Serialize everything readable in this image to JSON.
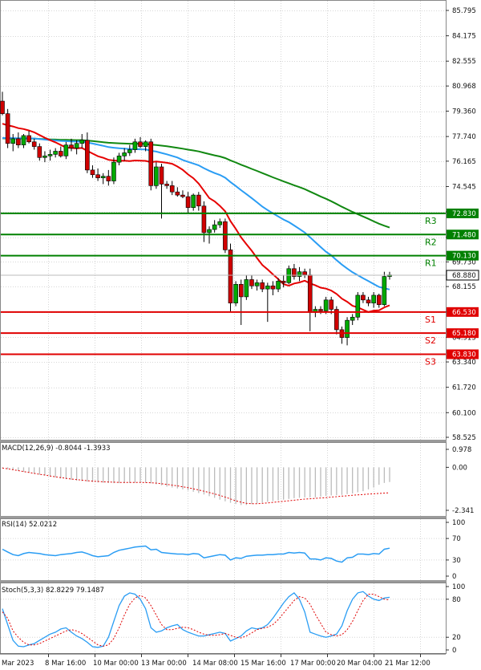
{
  "chart_data": [
    {
      "type": "candlestick",
      "price_labels": [
        "85.795",
        "84.175",
        "82.555",
        "80.968",
        "79.360",
        "77.740",
        "76.165",
        "74.545",
        "72.830",
        "71.480",
        "70.130",
        "69.730",
        "68.880",
        "68.155",
        "66.530",
        "64.915",
        "65.180",
        "63.830",
        "63.340",
        "61.720",
        "60.100",
        "58.525"
      ],
      "y_ticks": [
        85.795,
        84.175,
        82.555,
        80.968,
        79.36,
        77.74,
        76.165,
        74.545,
        72.925,
        71.305,
        69.73,
        68.155,
        66.53,
        64.915,
        63.34,
        61.72,
        60.1,
        58.525
      ],
      "ylim": [
        58.525,
        85.795
      ],
      "x_labels": [
        "Mar 2023",
        "8 Mar 16:00",
        "10 Mar 00:00",
        "13 Mar 00:00",
        "14 Mar 08:00",
        "15 Mar 16:00",
        "17 Mar 00:00",
        "20 Mar 04:00",
        "21 Mar 12:00"
      ],
      "levels": [
        {
          "name": "R3",
          "value": 72.83,
          "label": "72.830",
          "color": "#008000"
        },
        {
          "name": "R2",
          "value": 71.48,
          "label": "71.480",
          "color": "#008000"
        },
        {
          "name": "R1",
          "value": 70.13,
          "label": "70.130",
          "color": "#008000"
        },
        {
          "name": "S1",
          "value": 66.53,
          "label": "66.530",
          "color": "#e00000"
        },
        {
          "name": "S2",
          "value": 65.18,
          "label": "65.180",
          "color": "#e00000"
        },
        {
          "name": "S3",
          "value": 63.83,
          "label": "63.830",
          "color": "#e00000"
        }
      ],
      "last_price": {
        "value": 68.88,
        "label": "68.880"
      },
      "candles": [
        [
          80.0,
          80.6,
          79.1,
          79.2
        ],
        [
          79.2,
          79.5,
          77.0,
          77.3
        ],
        [
          77.3,
          77.9,
          76.8,
          77.6
        ],
        [
          77.6,
          78.0,
          77.0,
          77.2
        ],
        [
          77.2,
          77.9,
          77.0,
          77.8
        ],
        [
          77.8,
          78.1,
          77.3,
          77.4
        ],
        [
          77.4,
          77.6,
          76.9,
          77.1
        ],
        [
          77.1,
          77.3,
          76.2,
          76.4
        ],
        [
          76.4,
          76.8,
          76.1,
          76.5
        ],
        [
          76.5,
          76.9,
          76.2,
          76.6
        ],
        [
          76.6,
          77.0,
          76.4,
          76.8
        ],
        [
          76.8,
          77.1,
          76.4,
          76.5
        ],
        [
          76.5,
          77.4,
          76.3,
          77.2
        ],
        [
          77.2,
          77.6,
          76.8,
          77.0
        ],
        [
          77.0,
          77.5,
          76.6,
          77.3
        ],
        [
          77.3,
          77.9,
          77.0,
          77.5
        ],
        [
          77.5,
          78.0,
          75.4,
          75.6
        ],
        [
          75.6,
          75.9,
          75.1,
          75.3
        ],
        [
          75.3,
          75.7,
          74.9,
          75.1
        ],
        [
          75.1,
          75.4,
          74.7,
          75.2
        ],
        [
          75.2,
          75.6,
          74.6,
          74.9
        ],
        [
          74.9,
          76.4,
          74.7,
          76.1
        ],
        [
          76.1,
          76.7,
          75.9,
          76.5
        ],
        [
          76.5,
          77.0,
          76.2,
          76.7
        ],
        [
          76.7,
          77.2,
          76.5,
          76.9
        ],
        [
          76.9,
          77.6,
          76.7,
          77.4
        ],
        [
          77.4,
          77.7,
          77.0,
          77.1
        ],
        [
          77.1,
          77.5,
          76.8,
          77.4
        ],
        [
          77.4,
          77.6,
          74.3,
          74.6
        ],
        [
          74.6,
          76.1,
          74.4,
          75.8
        ],
        [
          75.8,
          76.0,
          72.5,
          74.7
        ],
        [
          74.7,
          74.9,
          74.4,
          74.6
        ],
        [
          74.6,
          74.9,
          74.0,
          74.2
        ],
        [
          74.2,
          74.5,
          73.9,
          74.0
        ],
        [
          74.0,
          74.3,
          73.8,
          73.9
        ],
        [
          73.9,
          74.2,
          72.8,
          73.2
        ],
        [
          73.2,
          74.1,
          73.0,
          74.0
        ],
        [
          74.0,
          74.2,
          73.0,
          73.3
        ],
        [
          73.3,
          73.6,
          71.0,
          71.6
        ],
        [
          71.6,
          72.0,
          70.9,
          71.8
        ],
        [
          71.8,
          72.4,
          71.6,
          72.1
        ],
        [
          72.1,
          72.5,
          71.9,
          72.3
        ],
        [
          72.3,
          72.5,
          70.3,
          70.5
        ],
        [
          70.5,
          70.9,
          66.5,
          67.1
        ],
        [
          67.1,
          68.5,
          66.9,
          68.3
        ],
        [
          68.3,
          68.6,
          65.7,
          67.5
        ],
        [
          67.5,
          68.9,
          67.3,
          68.6
        ],
        [
          68.6,
          68.9,
          68.0,
          68.2
        ],
        [
          68.2,
          68.6,
          67.9,
          68.4
        ],
        [
          68.4,
          68.6,
          67.8,
          68.0
        ],
        [
          68.0,
          68.4,
          65.9,
          68.2
        ],
        [
          68.2,
          68.5,
          67.6,
          68.0
        ],
        [
          68.0,
          68.7,
          67.8,
          68.5
        ],
        [
          68.5,
          68.9,
          68.1,
          68.4
        ],
        [
          68.4,
          69.5,
          68.3,
          69.3
        ],
        [
          69.3,
          69.6,
          68.6,
          68.8
        ],
        [
          68.8,
          69.4,
          68.5,
          69.1
        ],
        [
          69.1,
          69.3,
          68.7,
          68.9
        ],
        [
          68.9,
          69.3,
          65.3,
          66.5
        ],
        [
          66.5,
          66.9,
          66.2,
          66.7
        ],
        [
          66.7,
          66.9,
          66.4,
          66.6
        ],
        [
          66.6,
          67.5,
          66.4,
          67.3
        ],
        [
          67.3,
          67.5,
          66.4,
          66.7
        ],
        [
          66.7,
          66.9,
          65.1,
          65.4
        ],
        [
          65.4,
          65.6,
          64.5,
          64.9
        ],
        [
          64.9,
          66.2,
          64.4,
          66.0
        ],
        [
          66.0,
          66.4,
          65.7,
          66.2
        ],
        [
          66.2,
          67.8,
          66.0,
          67.6
        ],
        [
          67.6,
          67.8,
          67.1,
          67.3
        ],
        [
          67.3,
          67.5,
          66.9,
          67.1
        ],
        [
          67.1,
          67.8,
          66.8,
          67.6
        ],
        [
          67.6,
          67.7,
          66.8,
          67.0
        ],
        [
          67.0,
          69.1,
          66.9,
          68.8
        ],
        [
          68.8,
          69.1,
          68.6,
          68.9
        ]
      ],
      "ma_fast_color": "#e60000",
      "ma_mid_color": "#2a9df4",
      "ma_slow_color": "#118811"
    },
    {
      "type": "bar",
      "indicator": "MACD",
      "label": "MACD(12,26,9) -0.8044 -1.3933",
      "y_ticks": [
        "0.978",
        "0.00",
        "-2.341"
      ],
      "ylim": [
        -2.341,
        0.978
      ],
      "histogram": [
        -0.05,
        -0.1,
        -0.15,
        -0.2,
        -0.25,
        -0.3,
        -0.35,
        -0.4,
        -0.45,
        -0.5,
        -0.55,
        -0.6,
        -0.64,
        -0.68,
        -0.72,
        -0.75,
        -0.78,
        -0.8,
        -0.82,
        -0.84,
        -0.85,
        -0.86,
        -0.86,
        -0.86,
        -0.85,
        -0.84,
        -0.83,
        -0.84,
        -0.87,
        -0.92,
        -0.98,
        -1.05,
        -1.1,
        -1.15,
        -1.2,
        -1.26,
        -1.33,
        -1.4,
        -1.48,
        -1.57,
        -1.66,
        -1.76,
        -1.85,
        -1.93,
        -2.0,
        -2.05,
        -2.05,
        -2.0,
        -1.96,
        -1.92,
        -1.88,
        -1.84,
        -1.8,
        -1.76,
        -1.72,
        -1.68,
        -1.66,
        -1.64,
        -1.64,
        -1.63,
        -1.6,
        -1.56,
        -1.53,
        -1.52,
        -1.5,
        -1.46,
        -1.42,
        -1.36,
        -1.3,
        -1.2,
        -1.1,
        -0.95,
        -0.85,
        -0.8
      ],
      "signal": [
        -0.04,
        -0.08,
        -0.13,
        -0.18,
        -0.23,
        -0.28,
        -0.33,
        -0.38,
        -0.42,
        -0.47,
        -0.52,
        -0.56,
        -0.6,
        -0.64,
        -0.67,
        -0.7,
        -0.73,
        -0.75,
        -0.77,
        -0.79,
        -0.8,
        -0.81,
        -0.82,
        -0.82,
        -0.82,
        -0.82,
        -0.82,
        -0.83,
        -0.84,
        -0.86,
        -0.89,
        -0.93,
        -0.97,
        -1.01,
        -1.06,
        -1.11,
        -1.17,
        -1.23,
        -1.3,
        -1.37,
        -1.45,
        -1.53,
        -1.62,
        -1.72,
        -1.82,
        -1.9,
        -1.96,
        -1.98,
        -1.98,
        -1.96,
        -1.94,
        -1.91,
        -1.88,
        -1.85,
        -1.82,
        -1.79,
        -1.76,
        -1.73,
        -1.71,
        -1.69,
        -1.67,
        -1.65,
        -1.62,
        -1.6,
        -1.57,
        -1.55,
        -1.52,
        -1.5,
        -1.48,
        -1.46,
        -1.44,
        -1.42,
        -1.4,
        -1.39
      ],
      "hist_color": "#bbbbbb",
      "signal_color": "#e00000"
    },
    {
      "type": "line",
      "indicator": "RSI",
      "label": "RSI(14) 52.0212",
      "y_ticks": [
        "100",
        "70",
        "30",
        "0"
      ],
      "ylim": [
        0,
        100
      ],
      "values": [
        50,
        45,
        40,
        38,
        42,
        44,
        43,
        42,
        40,
        39,
        38,
        40,
        41,
        42,
        44,
        45,
        42,
        38,
        36,
        37,
        38,
        44,
        48,
        50,
        52,
        54,
        55,
        56,
        49,
        50,
        44,
        43,
        42,
        41,
        41,
        40,
        42,
        41,
        34,
        36,
        38,
        40,
        39,
        30,
        34,
        33,
        37,
        38,
        39,
        39,
        40,
        40,
        41,
        41,
        44,
        43,
        44,
        43,
        32,
        32,
        30,
        34,
        33,
        28,
        26,
        34,
        35,
        41,
        41,
        40,
        42,
        41,
        50,
        52
      ],
      "color": "#2a9df4"
    },
    {
      "type": "line",
      "indicator": "Stochastic",
      "label": "Stoch(5,3,3) 82.8229 79.1487",
      "y_ticks": [
        "100",
        "80",
        "20",
        "0"
      ],
      "ylim": [
        0,
        100
      ],
      "k": [
        65,
        40,
        15,
        6,
        5,
        8,
        10,
        15,
        20,
        25,
        28,
        33,
        35,
        28,
        22,
        18,
        12,
        5,
        4,
        6,
        20,
        45,
        70,
        85,
        90,
        88,
        80,
        65,
        35,
        28,
        30,
        35,
        38,
        40,
        32,
        28,
        25,
        22,
        22,
        24,
        26,
        28,
        26,
        14,
        18,
        22,
        30,
        35,
        33,
        35,
        40,
        50,
        62,
        74,
        84,
        90,
        80,
        60,
        28,
        25,
        22,
        20,
        22,
        25,
        38,
        62,
        80,
        90,
        92,
        85,
        80,
        78,
        82,
        83
      ],
      "d": [
        60,
        50,
        30,
        20,
        12,
        8,
        8,
        10,
        14,
        18,
        22,
        26,
        30,
        32,
        30,
        26,
        20,
        14,
        8,
        6,
        8,
        18,
        35,
        55,
        72,
        82,
        86,
        82,
        70,
        55,
        40,
        32,
        32,
        34,
        36,
        35,
        32,
        28,
        25,
        23,
        23,
        24,
        26,
        23,
        20,
        19,
        22,
        27,
        32,
        34,
        36,
        40,
        48,
        58,
        68,
        78,
        84,
        82,
        72,
        56,
        42,
        28,
        24,
        22,
        24,
        32,
        45,
        62,
        78,
        88,
        88,
        84,
        80,
        79
      ],
      "k_color": "#2a9df4",
      "d_color": "#e00000"
    }
  ]
}
